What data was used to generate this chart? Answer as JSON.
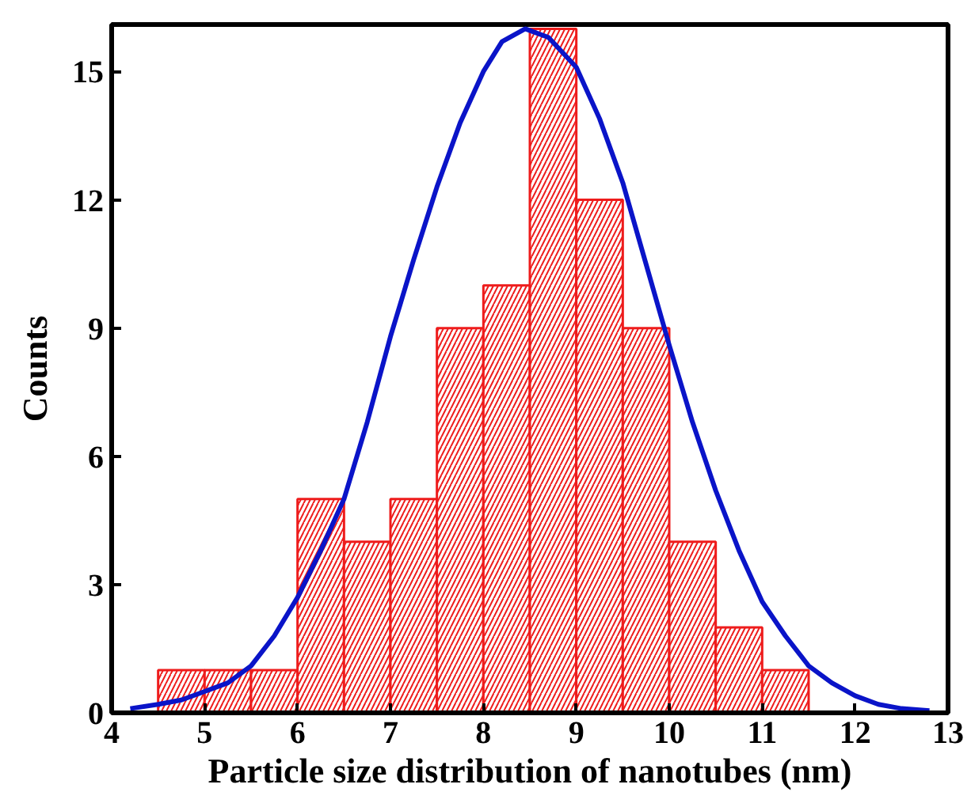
{
  "chart_data": {
    "type": "histogram",
    "xlabel": "Particle size distribution of nanotubes (nm)",
    "ylabel": "Counts",
    "bins": [
      4.5,
      5,
      5.5,
      6,
      6.5,
      7,
      7.5,
      8,
      8.5,
      9,
      9.5,
      10,
      10.5,
      11,
      11.5
    ],
    "values": [
      1,
      1,
      1,
      5,
      4,
      5,
      9,
      10,
      16,
      12,
      9,
      4,
      2,
      1
    ],
    "color": "#ee1c1c",
    "series": [
      {
        "type": "line",
        "color": "#0a14c8",
        "x": [
          4.2,
          4.5,
          4.75,
          5,
          5.25,
          5.5,
          5.75,
          6,
          6.25,
          6.5,
          6.75,
          7,
          7.25,
          7.5,
          7.75,
          8,
          8.2,
          8.45,
          8.7,
          9,
          9.25,
          9.5,
          9.75,
          10,
          10.25,
          10.5,
          10.75,
          11,
          11.25,
          11.5,
          11.75,
          12,
          12.25,
          12.5,
          12.8
        ],
        "values": [
          0.1,
          0.2,
          0.3,
          0.5,
          0.7,
          1.1,
          1.8,
          2.7,
          3.8,
          5.0,
          6.8,
          8.8,
          10.6,
          12.3,
          13.8,
          15.0,
          15.7,
          16.0,
          15.8,
          15.1,
          13.9,
          12.4,
          10.5,
          8.6,
          6.8,
          5.2,
          3.8,
          2.6,
          1.8,
          1.1,
          0.7,
          0.4,
          0.2,
          0.1,
          0.05
        ]
      }
    ],
    "xlim": [
      4,
      13
    ],
    "ylim": [
      0,
      16.1
    ],
    "xticks": [
      4,
      5,
      6,
      7,
      8,
      9,
      10,
      11,
      12,
      13
    ],
    "yticks": [
      0,
      3,
      6,
      9,
      12,
      15
    ],
    "grid": false
  }
}
